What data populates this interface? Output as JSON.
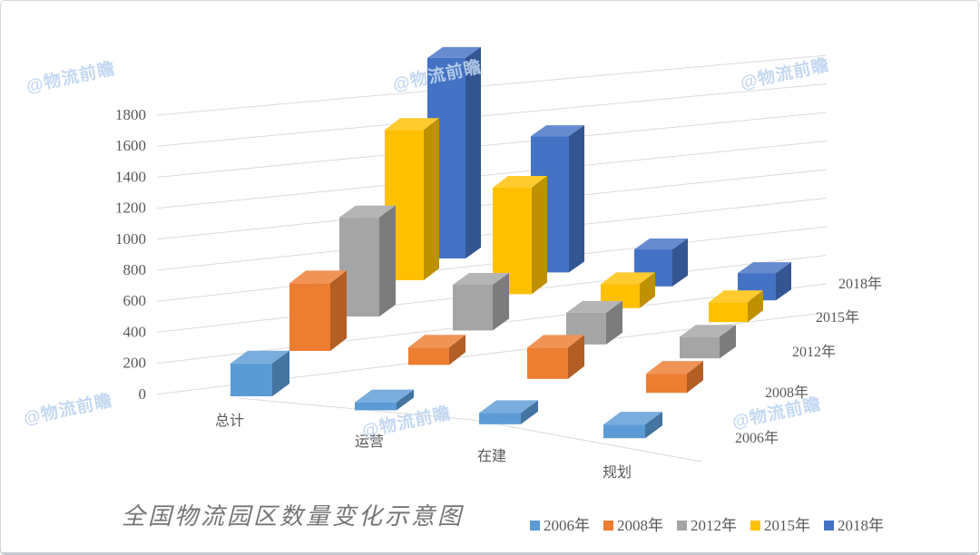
{
  "title": "全国物流园区数量变化示意图",
  "watermark": {
    "text": "@物流前瞻",
    "color": "#BDD4F0"
  },
  "colors": {
    "grid": "#DBDBDB",
    "axis_text": "#595959",
    "title_text": "#757575"
  },
  "chart_data": {
    "type": "bar",
    "projection": "3d-column",
    "title": "全国物流园区数量变化示意图",
    "categories": [
      "总计",
      "运营",
      "在建",
      "规划"
    ],
    "series": [
      {
        "name": "2006年",
        "color": "#5B9BD5",
        "values": [
          207,
          50,
          71,
          86
        ]
      },
      {
        "name": "2008年",
        "color": "#ED7D31",
        "values": [
          475,
          122,
          219,
          134
        ]
      },
      {
        "name": "2012年",
        "color": "#A5A5A5",
        "values": [
          754,
          348,
          241,
          165
        ]
      },
      {
        "name": "2015年",
        "color": "#FFC000",
        "values": [
          1210,
          857,
          193,
          160
        ]
      },
      {
        "name": "2018年",
        "color": "#4472C4",
        "values": [
          1638,
          1113,
          302,
          223
        ]
      }
    ],
    "depth_axis_labels": [
      "2006年",
      "2008年",
      "2012年",
      "2015年",
      "2018年"
    ],
    "y_ticks": [
      0,
      200,
      400,
      600,
      800,
      1000,
      1200,
      1400,
      1600,
      1800
    ],
    "ylim": [
      0,
      1800
    ],
    "ytick_step": 200,
    "grid": true,
    "legend_position": "bottom",
    "legend": [
      "2006年",
      "2008年",
      "2012年",
      "2015年",
      "2018年"
    ]
  }
}
